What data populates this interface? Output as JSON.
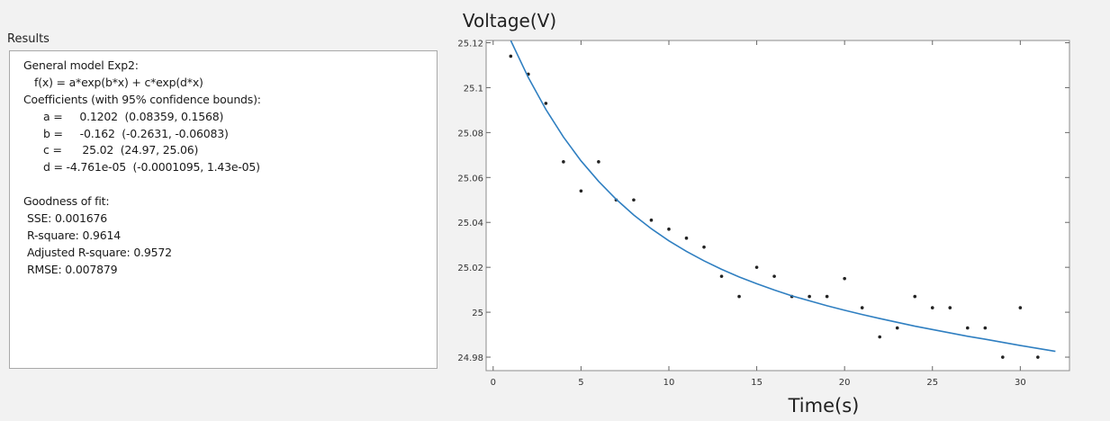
{
  "results": {
    "title": "Results",
    "lines": [
      "General model Exp2:",
      "f(x) = a*exp(b*x) + c*exp(d*x)",
      "Coefficients (with 95% confidence bounds):",
      "a =     0.1202  (0.08359, 0.1568)",
      "b =     -0.162  (-0.2631, -0.06083)",
      "c =      25.02  (24.97, 25.06)",
      "d = -4.761e-05  (-0.0001095, 1.43e-05)",
      "Goodness of fit:",
      "SSE: 0.001676",
      "R-square: 0.9614",
      "Adjusted R-square: 0.9572",
      "RMSE: 0.007879"
    ]
  },
  "chart_data": {
    "type": "scatter",
    "y_label": "Voltage(V)",
    "x_label": "Time(s)",
    "xlim": [
      -0.4,
      32.8
    ],
    "xticks": [
      0,
      5,
      10,
      15,
      20,
      25,
      30
    ],
    "ylim": [
      24.974,
      25.121
    ],
    "yticks": [
      24.98,
      25,
      25.02,
      25.04,
      25.06,
      25.08,
      25.1,
      25.12
    ],
    "grid": false,
    "series": [
      {
        "mode": "markers",
        "color": "#222222",
        "x": [
          1,
          2,
          3,
          4,
          5,
          6,
          7,
          8,
          9,
          10,
          11,
          12,
          13,
          14,
          15,
          16,
          17,
          18,
          19,
          20,
          21,
          22,
          23,
          24,
          25,
          26,
          27,
          28,
          29,
          30,
          31
        ],
        "values": [
          25.114,
          25.106,
          25.093,
          25.067,
          25.054,
          25.067,
          25.05,
          25.05,
          25.041,
          25.037,
          25.033,
          25.029,
          25.016,
          25.007,
          25.02,
          25.016,
          25.007,
          25.007,
          25.007,
          25.015,
          25.002,
          24.989,
          24.993,
          25.007,
          25.002,
          25.002,
          24.993,
          24.993,
          24.98,
          25.002,
          24.98
        ]
      },
      {
        "mode": "line",
        "color": "#2f7fc1",
        "x": [
          1,
          2,
          3,
          4,
          5,
          6,
          7,
          8,
          9,
          10,
          11,
          12,
          13,
          14,
          15,
          16,
          17,
          18,
          19,
          20,
          21,
          22,
          23,
          24,
          25,
          26,
          27,
          28,
          29,
          30,
          31,
          32
        ],
        "values": [
          25.121,
          25.1045,
          25.0903,
          25.078,
          25.0674,
          25.0583,
          25.0503,
          25.0433,
          25.0372,
          25.0318,
          25.0271,
          25.0229,
          25.0191,
          25.0157,
          25.0127,
          25.0099,
          25.0073,
          25.0051,
          25.0029,
          25.0009,
          24.999,
          24.9972,
          24.9955,
          24.9938,
          24.9923,
          24.9908,
          24.9893,
          24.988,
          24.9866,
          24.9852,
          24.9839,
          24.9826
        ]
      }
    ]
  }
}
